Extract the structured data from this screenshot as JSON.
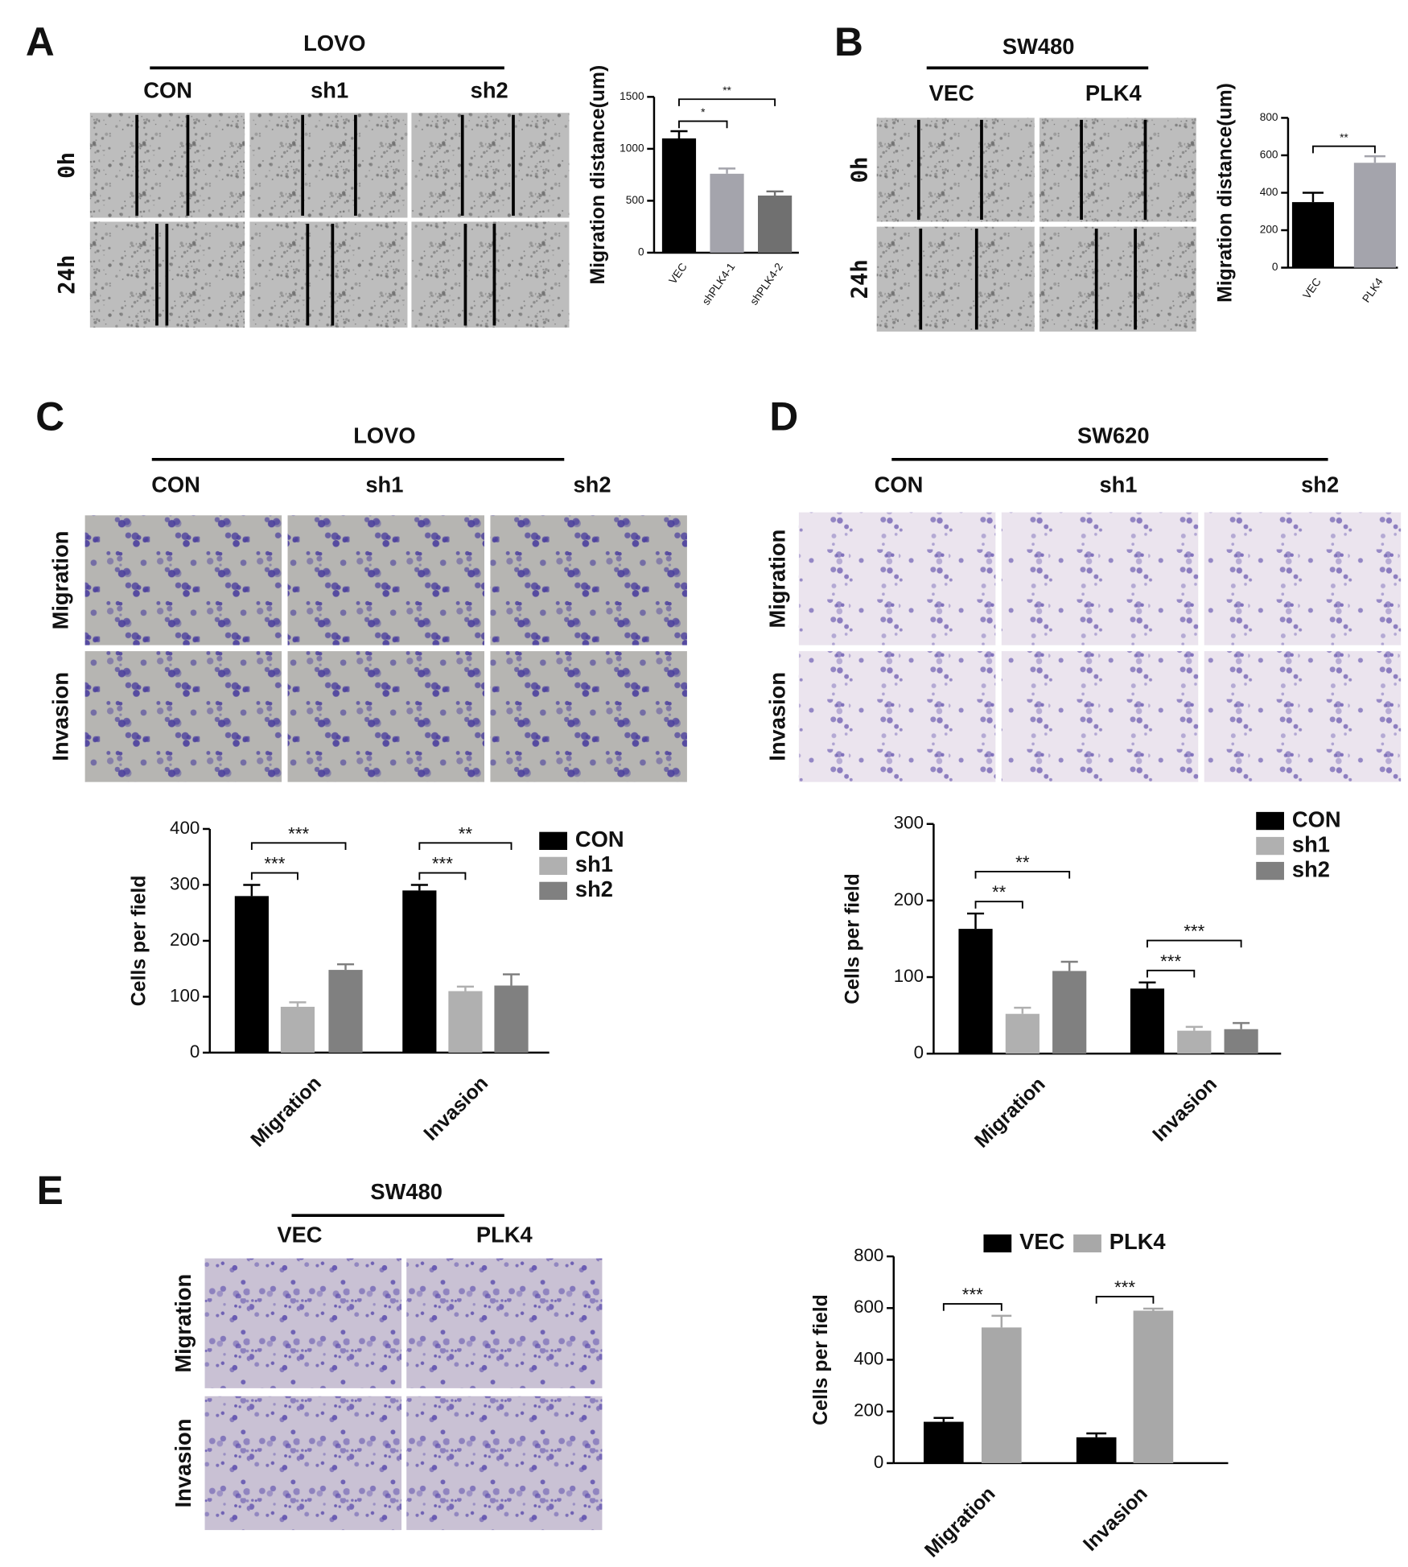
{
  "panels": [
    {
      "label": "A",
      "group": "LOVO",
      "columns": [
        "CON",
        "sh1",
        "sh2"
      ],
      "rows": [
        "0h",
        "24h"
      ]
    },
    {
      "label": "B",
      "group": "SW480",
      "columns": [
        "VEC",
        "PLK4"
      ],
      "rows": [
        "0h",
        "24h"
      ]
    },
    {
      "label": "C",
      "group": "LOVO",
      "columns": [
        "CON",
        "sh1",
        "sh2"
      ],
      "rows": [
        "Migration",
        "Invasion"
      ]
    },
    {
      "label": "D",
      "group": "SW620",
      "columns": [
        "CON",
        "sh1",
        "sh2"
      ],
      "rows": [
        "Migration",
        "Invasion"
      ]
    },
    {
      "label": "E",
      "group": "SW480",
      "columns": [
        "VEC",
        "PLK4"
      ],
      "rows": [
        "Migration",
        "Invasion"
      ]
    }
  ],
  "chart_data": [
    {
      "type": "bar",
      "ylabel": "Migration distance(um)",
      "categories": [
        "VEC",
        "shPLK4-1",
        "shPLK4-2"
      ],
      "values": [
        1100,
        760,
        550
      ],
      "errors": [
        70,
        50,
        40
      ],
      "colors": [
        "#000000",
        "#a4a4ac",
        "#707070"
      ],
      "ylim": [
        0,
        1500
      ],
      "yticks": [
        0,
        500,
        1000,
        1500
      ],
      "significance": [
        {
          "pair": [
            "VEC",
            "shPLK4-1"
          ],
          "label": "*"
        },
        {
          "pair": [
            "VEC",
            "shPLK4-2"
          ],
          "label": "**"
        }
      ]
    },
    {
      "type": "bar",
      "ylabel": "Migration distance(um)",
      "categories": [
        "VEC",
        "PLK4"
      ],
      "values": [
        350,
        560
      ],
      "errors": [
        50,
        35
      ],
      "colors": [
        "#000000",
        "#a4a4ac"
      ],
      "ylim": [
        0,
        800
      ],
      "yticks": [
        0,
        200,
        400,
        600,
        800
      ],
      "significance": [
        {
          "pair": [
            "VEC",
            "PLK4"
          ],
          "label": "**"
        }
      ]
    },
    {
      "type": "grouped_bar",
      "ylabel": "Cells per field",
      "categories": [
        "Migration",
        "Invasion"
      ],
      "legend": "right",
      "series": [
        {
          "name": "CON",
          "color": "#000000",
          "values": [
            280,
            290
          ],
          "errors": [
            20,
            10
          ]
        },
        {
          "name": "sh1",
          "color": "#b0b0b0",
          "values": [
            82,
            110
          ],
          "errors": [
            8,
            8
          ]
        },
        {
          "name": "sh2",
          "color": "#808080",
          "values": [
            148,
            120
          ],
          "errors": [
            10,
            20
          ]
        }
      ],
      "ylim": [
        0,
        400
      ],
      "yticks": [
        0,
        100,
        200,
        300,
        400
      ],
      "significance": [
        {
          "category": "Migration",
          "pair": [
            "CON",
            "sh1"
          ],
          "label": "***"
        },
        {
          "category": "Migration",
          "pair": [
            "CON",
            "sh2"
          ],
          "label": "***"
        },
        {
          "category": "Invasion",
          "pair": [
            "CON",
            "sh1"
          ],
          "label": "***"
        },
        {
          "category": "Invasion",
          "pair": [
            "CON",
            "sh2"
          ],
          "label": "**"
        }
      ]
    },
    {
      "type": "grouped_bar",
      "ylabel": "Cells per field",
      "categories": [
        "Migration",
        "Invasion"
      ],
      "legend": "right",
      "series": [
        {
          "name": "CON",
          "color": "#000000",
          "values": [
            163,
            85
          ],
          "errors": [
            20,
            8
          ]
        },
        {
          "name": "sh1",
          "color": "#b0b0b0",
          "values": [
            52,
            30
          ],
          "errors": [
            8,
            5
          ]
        },
        {
          "name": "sh2",
          "color": "#808080",
          "values": [
            108,
            32
          ],
          "errors": [
            12,
            8
          ]
        }
      ],
      "ylim": [
        0,
        300
      ],
      "yticks": [
        0,
        100,
        200,
        300
      ],
      "significance": [
        {
          "category": "Migration",
          "pair": [
            "CON",
            "sh1"
          ],
          "label": "**"
        },
        {
          "category": "Migration",
          "pair": [
            "CON",
            "sh2"
          ],
          "label": "**"
        },
        {
          "category": "Invasion",
          "pair": [
            "CON",
            "sh1"
          ],
          "label": "***"
        },
        {
          "category": "Invasion",
          "pair": [
            "CON",
            "sh2"
          ],
          "label": "***"
        }
      ]
    },
    {
      "type": "grouped_bar",
      "ylabel": "Cells per field",
      "categories": [
        "Migration",
        "Invasion"
      ],
      "legend": "top",
      "series": [
        {
          "name": "VEC",
          "color": "#000000",
          "values": [
            160,
            100
          ],
          "errors": [
            15,
            15
          ]
        },
        {
          "name": "PLK4",
          "color": "#a8a8a8",
          "values": [
            525,
            590
          ],
          "errors": [
            45,
            8
          ]
        }
      ],
      "ylim": [
        0,
        800
      ],
      "yticks": [
        0,
        200,
        400,
        600,
        800
      ],
      "significance": [
        {
          "category": "Migration",
          "pair": [
            "VEC",
            "PLK4"
          ],
          "label": "***"
        },
        {
          "category": "Invasion",
          "pair": [
            "VEC",
            "PLK4"
          ],
          "label": "***"
        }
      ]
    }
  ]
}
